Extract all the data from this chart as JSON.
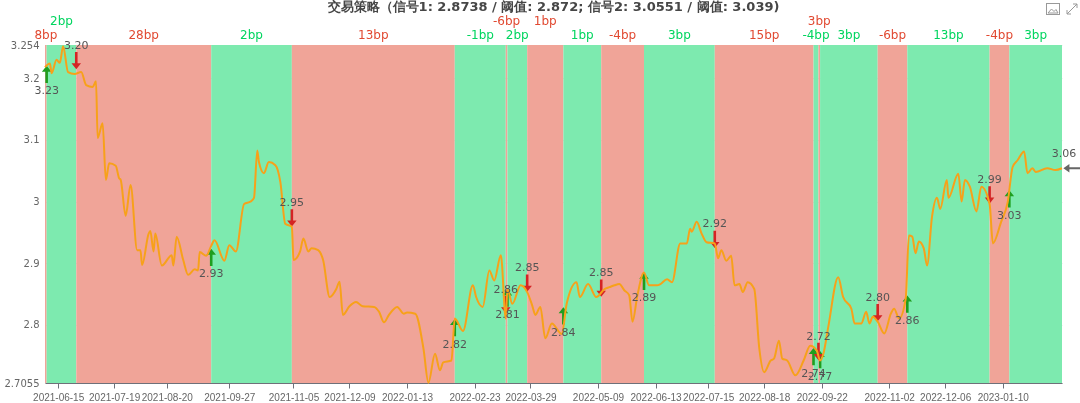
{
  "chart_data": {
    "type": "line",
    "title": "交易策略（信号1: 2.8738 / 阈值: 2.872; 信号2: 3.0551 / 阈值: 3.039)",
    "color": "#f7a11a",
    "line_style": "solid",
    "grid": "y",
    "x": [
      "2021-06-07",
      "2021-06-10",
      "2021-06-11",
      "2021-06-14",
      "2021-06-16",
      "2021-06-18",
      "2021-06-21",
      "2021-06-25",
      "2021-06-29",
      "2021-07-02",
      "2021-07-06",
      "2021-07-08",
      "2021-07-09",
      "2021-07-12",
      "2021-07-14",
      "2021-07-16",
      "2021-07-20",
      "2021-07-22",
      "2021-07-23",
      "2021-07-26",
      "2021-07-29",
      "2021-08-02",
      "2021-08-04",
      "2021-08-05",
      "2021-08-09",
      "2021-08-10",
      "2021-08-12",
      "2021-08-13",
      "2021-08-17",
      "2021-08-23",
      "2021-08-24",
      "2021-08-26",
      "2021-08-30",
      "2021-09-02",
      "2021-09-06",
      "2021-09-08",
      "2021-09-09",
      "2021-09-13",
      "2021-09-16",
      "2021-09-18",
      "2021-09-24",
      "2021-09-27",
      "2021-10-01",
      "2021-10-06",
      "2021-10-10",
      "2021-10-12",
      "2021-10-14",
      "2021-10-15",
      "2021-10-18",
      "2021-10-21",
      "2021-10-25",
      "2021-10-28",
      "2021-10-31",
      "2021-11-04",
      "2021-11-05",
      "2021-11-09",
      "2021-11-11",
      "2021-11-14",
      "2021-11-16",
      "2021-11-20",
      "2021-11-23",
      "2021-11-27",
      "2021-12-01",
      "2021-12-03",
      "2021-12-05",
      "2021-12-09",
      "2021-12-13",
      "2021-12-17",
      "2021-12-24",
      "2021-12-27",
      "2021-12-30",
      "2022-01-02",
      "2022-01-07",
      "2022-01-11",
      "2022-01-13",
      "2022-01-18",
      "2022-01-23",
      "2022-01-26",
      "2022-01-30",
      "2022-02-02",
      "2022-02-04",
      "2022-02-09",
      "2022-02-11",
      "2022-02-16",
      "2022-02-22",
      "2022-02-24",
      "2022-02-28",
      "2022-03-04",
      "2022-03-07",
      "2022-03-11",
      "2022-03-14",
      "2022-03-15",
      "2022-03-18",
      "2022-03-23",
      "2022-03-27",
      "2022-03-30",
      "2022-04-01",
      "2022-04-04",
      "2022-04-07",
      "2022-04-11",
      "2022-04-17",
      "2022-04-20",
      "2022-04-26",
      "2022-04-28",
      "2022-05-03",
      "2022-05-08",
      "2022-05-13",
      "2022-05-16",
      "2022-05-19",
      "2022-05-22",
      "2022-05-25",
      "2022-05-28",
      "2022-05-30",
      "2022-06-02",
      "2022-06-06",
      "2022-06-09",
      "2022-06-14",
      "2022-06-16",
      "2022-06-20",
      "2022-06-23",
      "2022-06-28",
      "2022-07-02",
      "2022-07-04",
      "2022-07-05",
      "2022-07-08",
      "2022-07-11",
      "2022-07-14",
      "2022-07-19",
      "2022-07-21",
      "2022-07-23",
      "2022-07-26",
      "2022-07-29",
      "2022-07-31",
      "2022-08-03",
      "2022-08-05",
      "2022-08-08",
      "2022-08-12",
      "2022-08-15",
      "2022-08-18",
      "2022-08-22",
      "2022-08-24",
      "2022-08-27",
      "2022-08-29",
      "2022-09-01",
      "2022-09-06",
      "2022-09-11",
      "2022-09-15",
      "2022-09-19",
      "2022-09-21",
      "2022-09-23",
      "2022-09-26",
      "2022-10-02",
      "2022-10-05",
      "2022-10-10",
      "2022-10-12",
      "2022-10-16",
      "2022-10-19",
      "2022-10-21",
      "2022-10-23",
      "2022-10-26",
      "2022-10-30",
      "2022-11-03",
      "2022-11-05",
      "2022-11-08",
      "2022-11-12",
      "2022-11-14",
      "2022-11-16",
      "2022-11-18",
      "2022-11-20",
      "2022-11-23",
      "2022-11-25",
      "2022-11-28",
      "2022-12-01",
      "2022-12-03",
      "2022-12-07",
      "2022-12-08",
      "2022-12-14",
      "2022-12-16",
      "2022-12-18",
      "2022-12-21",
      "2022-12-25",
      "2022-12-28",
      "2023-01-02",
      "2023-01-04",
      "2023-01-09",
      "2023-01-13",
      "2023-01-16",
      "2023-01-19",
      "2023-01-23",
      "2023-01-25",
      "2023-01-28",
      "2023-01-30",
      "2023-02-06",
      "2023-02-11",
      "2023-02-15"
    ],
    "values": [
      3.218,
      3.224,
      3.208,
      3.23,
      3.225,
      3.252,
      3.21,
      3.207,
      3.21,
      3.189,
      3.186,
      3.195,
      3.103,
      3.127,
      3.035,
      3.062,
      3.058,
      3.038,
      3.035,
      2.977,
      3.027,
      2.921,
      2.921,
      2.897,
      2.948,
      2.952,
      2.919,
      2.948,
      2.896,
      2.913,
      2.896,
      2.943,
      2.905,
      2.881,
      2.89,
      2.888,
      2.918,
      2.912,
      2.928,
      2.937,
      2.904,
      2.929,
      2.919,
      2.996,
      3.0,
      3.006,
      3.083,
      3.064,
      3.046,
      3.064,
      3.059,
      3.032,
      2.964,
      2.959,
      2.905,
      2.919,
      2.94,
      2.919,
      2.924,
      2.921,
      2.905,
      2.845,
      2.858,
      2.87,
      2.816,
      2.83,
      2.837,
      2.83,
      2.829,
      2.821,
      2.804,
      2.816,
      2.829,
      2.818,
      2.82,
      2.818,
      2.761,
      2.706,
      2.753,
      2.726,
      2.739,
      2.742,
      2.81,
      2.79,
      2.864,
      2.845,
      2.829,
      2.888,
      2.872,
      2.913,
      2.81,
      2.858,
      2.834,
      2.864,
      2.853,
      2.832,
      2.816,
      2.829,
      2.778,
      2.802,
      2.785,
      2.834,
      2.869,
      2.845,
      2.866,
      2.845,
      2.858,
      2.861,
      2.864,
      2.866,
      2.856,
      2.848,
      2.805,
      2.848,
      2.885,
      2.864,
      2.864,
      2.866,
      2.874,
      2.869,
      2.932,
      2.932,
      2.956,
      2.951,
      2.967,
      2.948,
      2.934,
      2.932,
      2.908,
      2.921,
      2.904,
      2.912,
      2.864,
      2.866,
      2.853,
      2.869,
      2.858,
      2.763,
      2.723,
      2.742,
      2.745,
      2.774,
      2.745,
      2.742,
      2.718,
      2.742,
      2.766,
      2.758,
      2.742,
      2.753,
      2.797,
      2.877,
      2.845,
      2.826,
      2.802,
      2.802,
      2.821,
      2.802,
      2.813,
      2.805,
      2.786,
      2.818,
      2.826,
      2.81,
      2.842,
      2.945,
      2.943,
      2.916,
      2.935,
      2.924,
      2.896,
      2.975,
      3.006,
      2.988,
      3.035,
      3.006,
      3.045,
      3.0,
      3.035,
      3.024,
      2.984,
      3.024,
      2.996,
      2.932,
      2.967,
      2.999,
      3.056,
      3.067,
      3.081,
      3.046,
      3.054,
      3.048,
      3.054,
      3.051,
      3.054
    ],
    "xlim": [
      "2021-06-07",
      "2023-02-15"
    ],
    "xticks": [
      "2021-06-15",
      "2021-07-19",
      "2021-08-20",
      "2021-09-27",
      "2021-11-05",
      "2021-12-09",
      "2022-01-13",
      "2022-02-23",
      "2022-03-29",
      "2022-05-09",
      "2022-06-13",
      "2022-07-15",
      "2022-08-18",
      "2022-09-22",
      "2022-11-02",
      "2022-12-06",
      "2023-01-10"
    ],
    "ylim": [
      2.7055,
      3.254
    ],
    "yticks": [
      2.7055,
      2.8,
      2.9,
      3,
      3.1,
      3.2,
      3.254
    ],
    "bands": [
      {
        "axis": "x",
        "from": "2021-06-07",
        "to": "2021-06-08",
        "label": "8bp",
        "color": "#f0a498"
      },
      {
        "axis": "x",
        "from": "2021-06-08",
        "to": "2021-06-26",
        "label": "2bp",
        "color": "#7deaaf"
      },
      {
        "axis": "x",
        "from": "2021-06-26",
        "to": "2021-09-16",
        "label": "28bp",
        "color": "#f0a498"
      },
      {
        "axis": "x",
        "from": "2021-09-16",
        "to": "2021-11-04",
        "label": "2bp",
        "color": "#7deaaf"
      },
      {
        "axis": "x",
        "from": "2021-11-04",
        "to": "2022-02-11",
        "label": "13bp",
        "color": "#f0a498"
      },
      {
        "axis": "x",
        "from": "2022-02-11",
        "to": "2022-03-14",
        "label": "-1bp",
        "color": "#7deaaf"
      },
      {
        "axis": "x",
        "from": "2022-03-14",
        "to": "2022-03-15",
        "label": "-6bp",
        "color": "#f0a498"
      },
      {
        "axis": "x",
        "from": "2022-03-15",
        "to": "2022-03-27",
        "label": "2bp",
        "color": "#7deaaf"
      },
      {
        "axis": "x",
        "from": "2022-03-27",
        "to": "2022-04-18",
        "label": "1bp",
        "color": "#f0a498"
      },
      {
        "axis": "x",
        "from": "2022-04-18",
        "to": "2022-05-11",
        "label": "1bp",
        "color": "#7deaaf"
      },
      {
        "axis": "x",
        "from": "2022-05-11",
        "to": "2022-06-06",
        "label": "-4bp",
        "color": "#f0a498"
      },
      {
        "axis": "x",
        "from": "2022-06-06",
        "to": "2022-07-19",
        "label": "3bp",
        "color": "#7deaaf"
      },
      {
        "axis": "x",
        "from": "2022-07-19",
        "to": "2022-09-17",
        "label": "15bp",
        "color": "#f0a498"
      },
      {
        "axis": "x",
        "from": "2022-09-17",
        "to": "2022-09-20",
        "label": "-4bp",
        "color": "#7deaaf"
      },
      {
        "axis": "x",
        "from": "2022-09-20",
        "to": "2022-09-21",
        "label": "3bp",
        "color": "#f0a498"
      },
      {
        "axis": "x",
        "from": "2022-09-21",
        "to": "2022-10-26",
        "label": "3bp",
        "color": "#7deaaf"
      },
      {
        "axis": "x",
        "from": "2022-10-26",
        "to": "2022-11-13",
        "label": "-6bp",
        "color": "#f0a498"
      },
      {
        "axis": "x",
        "from": "2022-11-13",
        "to": "2023-01-02",
        "label": "13bp",
        "color": "#7deaaf"
      },
      {
        "axis": "x",
        "from": "2023-01-02",
        "to": "2023-01-14",
        "label": "-4bp",
        "color": "#f0a498"
      },
      {
        "axis": "x",
        "from": "2023-01-14",
        "to": "2023-02-15",
        "label": "3bp",
        "color": "#7deaaf"
      }
    ],
    "annotations": [
      {
        "text": "3.23",
        "x": "2021-06-08",
        "y": 3.221
      },
      {
        "text": "3.20",
        "x": "2021-06-26",
        "y": 3.214
      },
      {
        "text": "2.93",
        "x": "2021-09-16",
        "y": 2.924
      },
      {
        "text": "2.95",
        "x": "2021-11-04",
        "y": 2.959
      },
      {
        "text": "2.82",
        "x": "2022-02-11",
        "y": 2.81
      },
      {
        "text": "2.86",
        "x": "2022-03-14",
        "y": 2.818
      },
      {
        "text": "2.81",
        "x": "2022-03-15",
        "y": 2.858
      },
      {
        "text": "2.85",
        "x": "2022-03-27",
        "y": 2.853
      },
      {
        "text": "2.84",
        "x": "2022-04-18",
        "y": 2.829
      },
      {
        "text": "2.85",
        "x": "2022-05-11",
        "y": 2.845
      },
      {
        "text": "2.89",
        "x": "2022-06-06",
        "y": 2.885
      },
      {
        "text": "2.92",
        "x": "2022-07-19",
        "y": 2.924
      },
      {
        "text": "2.74",
        "x": "2022-09-17",
        "y": 2.763
      },
      {
        "text": "2.72",
        "x": "2022-09-20",
        "y": 2.742
      },
      {
        "text": "2.77",
        "x": "2022-09-21",
        "y": 2.758
      },
      {
        "text": "2.80",
        "x": "2022-10-26",
        "y": 2.805
      },
      {
        "text": "2.86",
        "x": "2022-11-13",
        "y": 2.848
      },
      {
        "text": "2.99",
        "x": "2023-01-02",
        "y": 2.996
      },
      {
        "text": "3.03",
        "x": "2023-01-14",
        "y": 3.019
      },
      {
        "text": "3.06",
        "x": "2023-02-15",
        "y": 3.054
      }
    ]
  }
}
